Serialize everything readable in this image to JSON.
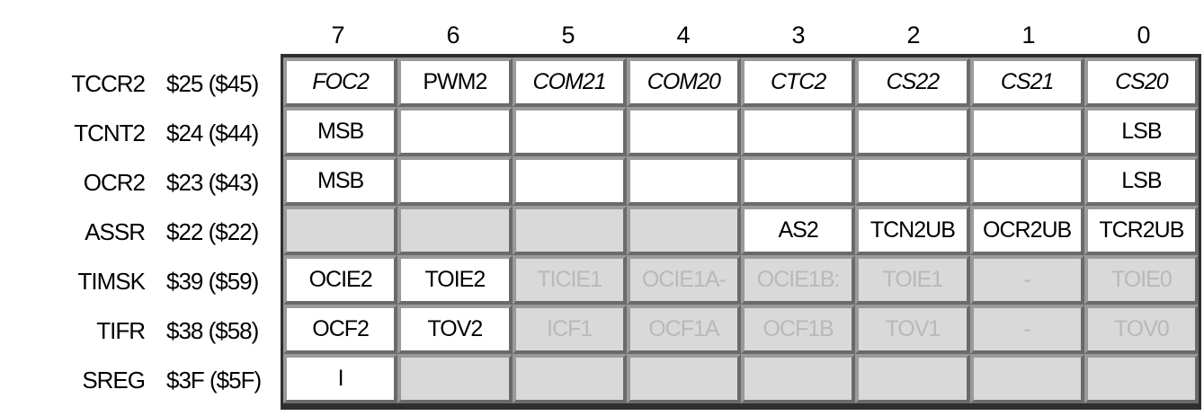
{
  "bit_numbers": [
    "7",
    "6",
    "5",
    "4",
    "3",
    "2",
    "1",
    "0"
  ],
  "registers": [
    {
      "name": "TCCR2",
      "address": "$25 ($45)"
    },
    {
      "name": "TCNT2",
      "address": "$24 ($44)"
    },
    {
      "name": "OCR2",
      "address": "$23 ($43)"
    },
    {
      "name": "ASSR",
      "address": "$22 ($22)"
    },
    {
      "name": "TIMSK",
      "address": "$39 ($59)"
    },
    {
      "name": "TIFR",
      "address": "$38 ($58)"
    },
    {
      "name": "SREG",
      "address": "$3F ($5F)"
    }
  ],
  "cells": [
    [
      "FOC2",
      "PWM2",
      "COM21",
      "COM20",
      "CTC2",
      "CS22",
      "CS21",
      "CS20"
    ],
    [
      "MSB",
      "",
      "",
      "",
      "",
      "",
      "",
      "LSB"
    ],
    [
      "MSB",
      "",
      "",
      "",
      "",
      "",
      "",
      "LSB"
    ],
    [
      "",
      "",
      "",
      "",
      "AS2",
      "TCN2UB",
      "OCR2UB",
      "TCR2UB"
    ],
    [
      "OCIE2",
      "TOIE2",
      "TICIE1",
      "OCIE1A-",
      "OCIE1B:",
      "TOIE1",
      "-",
      "TOIE0"
    ],
    [
      "OCF2",
      "TOV2",
      "ICF1",
      "OCF1A",
      "OCF1B",
      "TOV1",
      "-",
      "TOV0"
    ],
    [
      "I",
      "",
      "",
      "",
      "",
      "",
      "",
      ""
    ]
  ],
  "colors": {
    "cell_active": "#ffffff",
    "cell_inactive": "#d9d9d9",
    "text_dimmed": "#b9b9b9",
    "grid_frame": "#2f2f2f"
  }
}
